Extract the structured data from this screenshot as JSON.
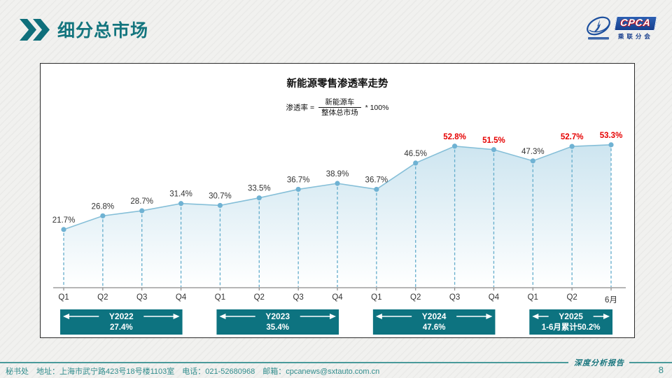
{
  "header": {
    "title": "细分总市场"
  },
  "logo": {
    "badge": "CPCA",
    "sub_text": "乘联分会"
  },
  "chart_data": {
    "type": "area",
    "title": "新能源零售渗透率走势",
    "formula": {
      "lhs": "渗透率 =",
      "numerator": "新能源车",
      "denominator": "整体总市场",
      "rhs": "* 100%"
    },
    "categories": [
      "Q1",
      "Q2",
      "Q3",
      "Q4",
      "Q1",
      "Q2",
      "Q3",
      "Q4",
      "Q1",
      "Q2",
      "Q3",
      "Q4",
      "Q1",
      "Q2",
      "6月"
    ],
    "values": [
      21.7,
      26.8,
      28.7,
      31.4,
      30.7,
      33.5,
      36.7,
      38.9,
      36.7,
      46.5,
      52.8,
      51.5,
      47.3,
      52.7,
      53.3
    ],
    "highlight_indices": [
      10,
      11,
      13,
      14
    ],
    "ylim": [
      0,
      60
    ],
    "grid": false,
    "legend": "none",
    "year_bands": [
      {
        "label": "Y2022",
        "value": "27.4%",
        "from": 0,
        "to": 3
      },
      {
        "label": "Y2023",
        "value": "35.4%",
        "from": 4,
        "to": 7
      },
      {
        "label": "Y2024",
        "value": "47.6%",
        "from": 8,
        "to": 11
      },
      {
        "label": "Y2025",
        "value": "1-6月累计50.2%",
        "from": 12,
        "to": 14
      }
    ],
    "colors": {
      "line": "#85bfd8",
      "marker": "#6fb2d3",
      "dropline": "#63accb",
      "area_top": "#cde5f0",
      "area_bottom": "#ffffff",
      "band": "#0d7380",
      "label": "#333333",
      "highlight": "#e60000",
      "axis": "#8a8a8a"
    }
  },
  "footer": {
    "left": "秘书处　地址：上海市武宁路423号18号楼1103室　电话：021-52680968　邮箱：cpcanews@sxtauto.com.cn",
    "report": "深度分析报告",
    "page": "8"
  }
}
